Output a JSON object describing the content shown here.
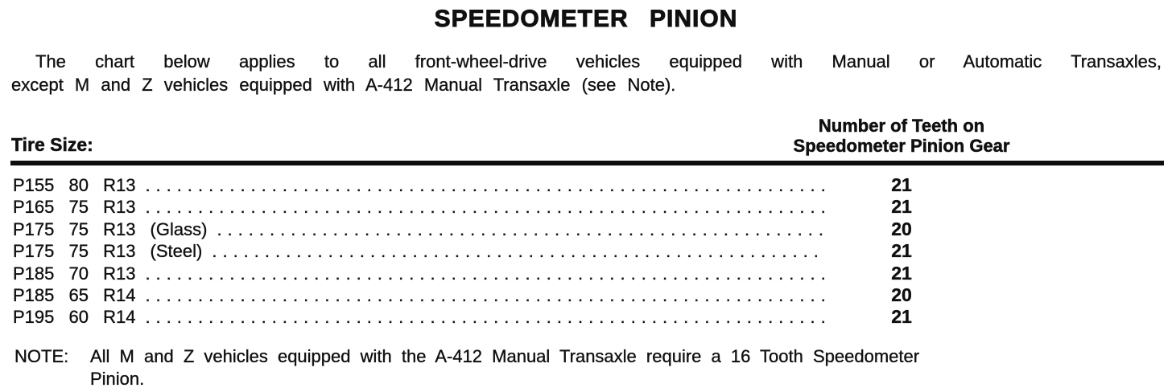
{
  "doc": {
    "title": "SPEEDOMETER PINION",
    "intro_lines": [
      "The chart below applies to all front-wheel-drive vehicles equipped with Manual or Automatic Transaxles,",
      "except M and Z vehicles equipped with A-412 Manual Transaxle (see Note)."
    ],
    "note": {
      "label": "NOTE:",
      "lines": [
        "All M and Z vehicles equipped with the A-412 Manual Transaxle require a 16 Tooth Speedometer",
        "Pinion."
      ]
    }
  },
  "table": {
    "tire_size_header": "Tire Size:",
    "teeth_header_line1": "Number of Teeth on",
    "teeth_header_line2": "Speedometer Pinion Gear",
    "rows": [
      {
        "tire_size": "P155 80 R13",
        "teeth": "21"
      },
      {
        "tire_size": "P165 75 R13",
        "teeth": "21"
      },
      {
        "tire_size": "P175 75 R13 (Glass)",
        "teeth": "20"
      },
      {
        "tire_size": "P175 75 R13 (Steel)",
        "teeth": "21"
      },
      {
        "tire_size": "P185 70 R13",
        "teeth": "21"
      },
      {
        "tire_size": "P185 65 R14",
        "teeth": "20"
      },
      {
        "tire_size": "P195 60 R14",
        "teeth": "21"
      }
    ]
  }
}
